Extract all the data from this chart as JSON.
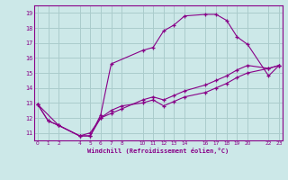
{
  "xlabel": "Windchill (Refroidissement éolien,°C)",
  "bg_color": "#cce8e8",
  "line_color": "#880088",
  "grid_color": "#aacccc",
  "line1_x": [
    0,
    1,
    2,
    4,
    5,
    6,
    7,
    8,
    10,
    11,
    12,
    13,
    14,
    16,
    17,
    18,
    19,
    20,
    22,
    23
  ],
  "line1_y": [
    12.9,
    11.8,
    11.5,
    10.8,
    10.8,
    12.0,
    12.5,
    12.8,
    13.0,
    13.2,
    12.8,
    13.1,
    13.4,
    13.7,
    14.0,
    14.3,
    14.7,
    15.0,
    15.3,
    15.5
  ],
  "line2_x": [
    0,
    2,
    4,
    5,
    6,
    7,
    10,
    11,
    12,
    13,
    14,
    16,
    17,
    18,
    19,
    20,
    22,
    23
  ],
  "line2_y": [
    12.9,
    11.5,
    10.8,
    10.8,
    12.2,
    15.6,
    16.5,
    16.7,
    17.8,
    18.2,
    18.8,
    18.9,
    18.9,
    18.5,
    17.4,
    16.9,
    14.8,
    15.5
  ],
  "line3_x": [
    0,
    1,
    2,
    4,
    5,
    6,
    7,
    8,
    10,
    11,
    12,
    13,
    14,
    16,
    17,
    18,
    19,
    20,
    22,
    23
  ],
  "line3_y": [
    12.9,
    11.8,
    11.5,
    10.8,
    11.0,
    12.0,
    12.3,
    12.6,
    13.2,
    13.4,
    13.2,
    13.5,
    13.8,
    14.2,
    14.5,
    14.8,
    15.2,
    15.5,
    15.3,
    15.5
  ],
  "xlim": [
    0,
    23
  ],
  "ylim": [
    10.5,
    19.5
  ],
  "xtick_labels": [
    "0",
    "1",
    "2",
    "4",
    "5",
    "6",
    "7",
    "8",
    "10",
    "11",
    "12",
    "13",
    "14",
    "16",
    "17",
    "18",
    "19",
    "20",
    "22",
    "23"
  ],
  "xtick_positions": [
    0,
    1,
    2,
    4,
    5,
    6,
    7,
    8,
    10,
    11,
    12,
    13,
    14,
    16,
    17,
    18,
    19,
    20,
    22,
    23
  ],
  "ytick_labels": [
    "11",
    "12",
    "13",
    "14",
    "15",
    "16",
    "17",
    "18",
    "19"
  ],
  "ytick_positions": [
    11,
    12,
    13,
    14,
    15,
    16,
    17,
    18,
    19
  ]
}
